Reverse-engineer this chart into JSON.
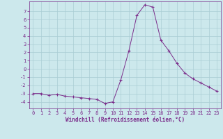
{
  "x": [
    0,
    1,
    2,
    3,
    4,
    5,
    6,
    7,
    8,
    9,
    10,
    11,
    12,
    13,
    14,
    15,
    16,
    17,
    18,
    19,
    20,
    21,
    22,
    23
  ],
  "y": [
    -3.0,
    -3.0,
    -3.2,
    -3.1,
    -3.3,
    -3.4,
    -3.5,
    -3.6,
    -3.7,
    -4.2,
    -4.0,
    -1.3,
    2.2,
    6.5,
    7.8,
    7.5,
    3.5,
    2.2,
    0.7,
    -0.5,
    -1.2,
    -1.7,
    -2.2,
    -2.7
  ],
  "xlim": [
    -0.5,
    23.5
  ],
  "ylim": [
    -4.8,
    8.2
  ],
  "yticks": [
    -4,
    -3,
    -2,
    -1,
    0,
    1,
    2,
    3,
    4,
    5,
    6,
    7
  ],
  "xticks": [
    0,
    1,
    2,
    3,
    4,
    5,
    6,
    7,
    8,
    9,
    10,
    11,
    12,
    13,
    14,
    15,
    16,
    17,
    18,
    19,
    20,
    21,
    22,
    23
  ],
  "xlabel": "Windchill (Refroidissement éolien,°C)",
  "line_color": "#7b2d8b",
  "marker": "+",
  "bg_color": "#cce8ec",
  "grid_color": "#aacdd4",
  "xlabel_color": "#7b2d8b",
  "tick_color": "#7b2d8b",
  "axis_color": "#7b2d8b"
}
